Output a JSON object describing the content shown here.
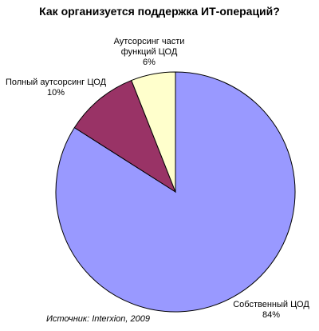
{
  "chart_data": {
    "type": "pie",
    "title": "Как организуется поддержка ИТ-операций?",
    "source": "Источник: Interxion, 2009",
    "categories": [
      "Собственный ЦОД",
      "Полный аутсорсинг ЦОД",
      "Аутсорсинг части функций ЦОД"
    ],
    "values": [
      84,
      10,
      6
    ],
    "value_labels": [
      "84%",
      "10%",
      "6%"
    ],
    "colors": [
      "#9999ff",
      "#993366",
      "#ffffcc"
    ]
  }
}
